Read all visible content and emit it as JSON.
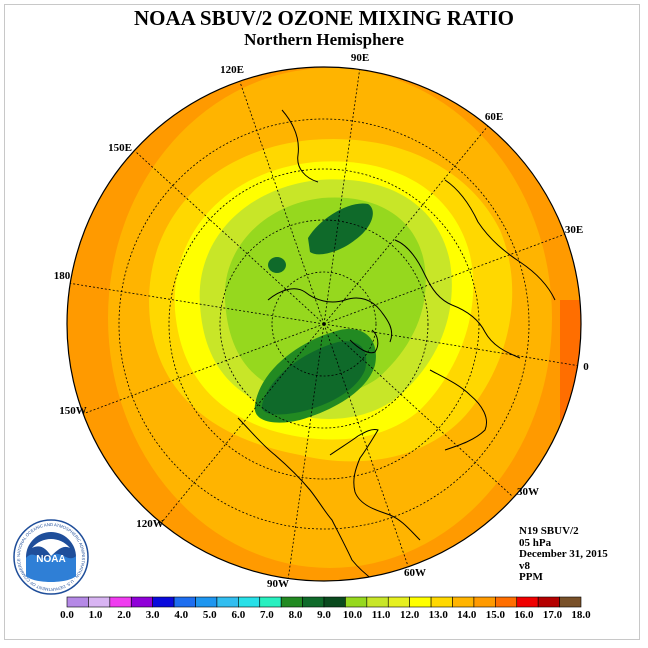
{
  "title": "NOAA SBUV/2 OZONE MIXING RATIO",
  "subtitle": "Northern Hemisphere",
  "longitude_labels": [
    "90E",
    "60E",
    "30E",
    "0",
    "30W",
    "60W",
    "90W",
    "120W",
    "150W",
    "180",
    "150E",
    "120E"
  ],
  "info": {
    "instrument": "N19 SBUV/2",
    "level": "05 hPa",
    "date": "December 31, 2015",
    "version": "v8",
    "units": "PPM"
  },
  "logo": {
    "text": "NOAA",
    "ring_text": "NATIONAL OCEANIC AND ATMOSPHERIC ADMINISTRATION · U.S. DEPARTMENT OF COMMERCE"
  },
  "colorbar": {
    "colors": [
      "#b589e6",
      "#d8b4f2",
      "#f03cf0",
      "#9000d8",
      "#0a0adc",
      "#1e6ef0",
      "#1e96f0",
      "#32bef0",
      "#28e0e8",
      "#28f0c0",
      "#228a22",
      "#0f6a2a",
      "#0a4a1e",
      "#96d81e",
      "#c8e628",
      "#e6f020",
      "#ffff00",
      "#ffd800",
      "#ffb400",
      "#ff9a00",
      "#ff6e00",
      "#f00000",
      "#b40000",
      "#785028"
    ],
    "labels": [
      "0.0",
      "1.0",
      "2.0",
      "3.0",
      "4.0",
      "5.0",
      "6.0",
      "7.0",
      "8.0",
      "9.0",
      "10.0",
      "11.0",
      "12.0",
      "13.0",
      "14.0",
      "15.0",
      "16.0",
      "17.0",
      "18.0"
    ]
  }
}
